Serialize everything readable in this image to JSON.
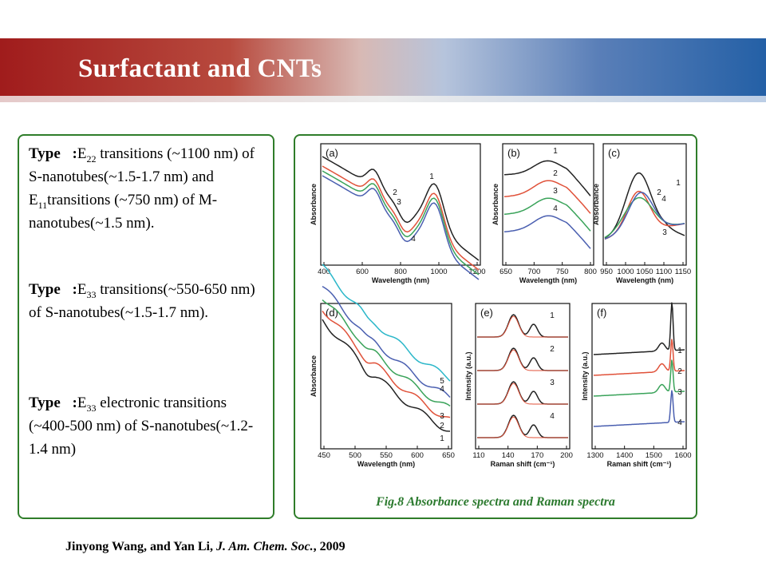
{
  "slide": {
    "title": "Surfactant and CNTs"
  },
  "types": [
    {
      "label": "Type\u0000:",
      "e1": "E",
      "e1_sub": "22",
      "t1": " transitions (~1100 nm) of S-nanotubes(~1.5-1.7 nm) and ",
      "e2": "E",
      "e2_sub": "11",
      "t2": "transitions (~750 nm) of M-nanotubes(~1.5 nm)."
    },
    {
      "label": "Type\u0000:",
      "e1": "E",
      "e1_sub": "33",
      "t1": " transitions(~550-650 nm) of S-nanotubes(~1.5-1.7 nm)."
    },
    {
      "label": "Type\u0000:",
      "e1": "E",
      "e1_sub": "33",
      "t1": " electronic transitions (~400-500 nm) of S-nanotubes(~1.2-1.4 nm)"
    }
  ],
  "figure": {
    "caption": "Fig.8   Absorbance spectra and Raman spectra",
    "colors": {
      "black": "#222222",
      "red": "#e0523a",
      "green": "#3aa35a",
      "blue": "#4a5fb0",
      "cyan": "#2bb7c9"
    },
    "panels": {
      "a": {
        "letter": "(a)",
        "xlabel": "Wavelength (nm)",
        "ylabel": "Absorbance",
        "ticks": [
          "400",
          "600",
          "800",
          "1000",
          "1200"
        ],
        "curve_labels": [
          "1",
          "2",
          "3",
          "4"
        ]
      },
      "b": {
        "letter": "(b)",
        "xlabel": "Wavelength (nm)",
        "ylabel": "Absorbance",
        "ticks": [
          "650",
          "700",
          "750",
          "800"
        ],
        "curve_labels": [
          "1",
          "2",
          "3",
          "4"
        ]
      },
      "c": {
        "letter": "(c)",
        "xlabel": "Wavelength (nm)",
        "ylabel": "Absorbance",
        "ticks": [
          "950",
          "1000",
          "1050",
          "1100",
          "1150"
        ],
        "curve_labels": [
          "1",
          "2",
          "3",
          "4"
        ]
      },
      "d": {
        "letter": "(d)",
        "xlabel": "Wavelength (nm)",
        "ylabel": "Absorbance",
        "ticks": [
          "450",
          "500",
          "550",
          "600",
          "650"
        ],
        "curve_labels": [
          "1",
          "2",
          "3",
          "4",
          "5"
        ]
      },
      "e": {
        "letter": "(e)",
        "xlabel": "Raman shift (cm⁻¹)",
        "ylabel": "Intensity (a.u.)",
        "ticks": [
          "110",
          "140",
          "170",
          "200"
        ],
        "curve_labels": [
          "1",
          "2",
          "3",
          "4"
        ]
      },
      "f": {
        "letter": "(f)",
        "xlabel": "Raman shift (cm⁻¹)",
        "ylabel": "Intensity (a.u.)",
        "ticks": [
          "1300",
          "1400",
          "1500",
          "1600"
        ],
        "curve_labels": [
          "1",
          "2",
          "3",
          "4"
        ]
      }
    }
  },
  "citation": {
    "authors": "Jinyong Wang, and Yan Li, ",
    "journal": "J. Am.  Chem.  Soc.",
    "year": ", 2009"
  }
}
